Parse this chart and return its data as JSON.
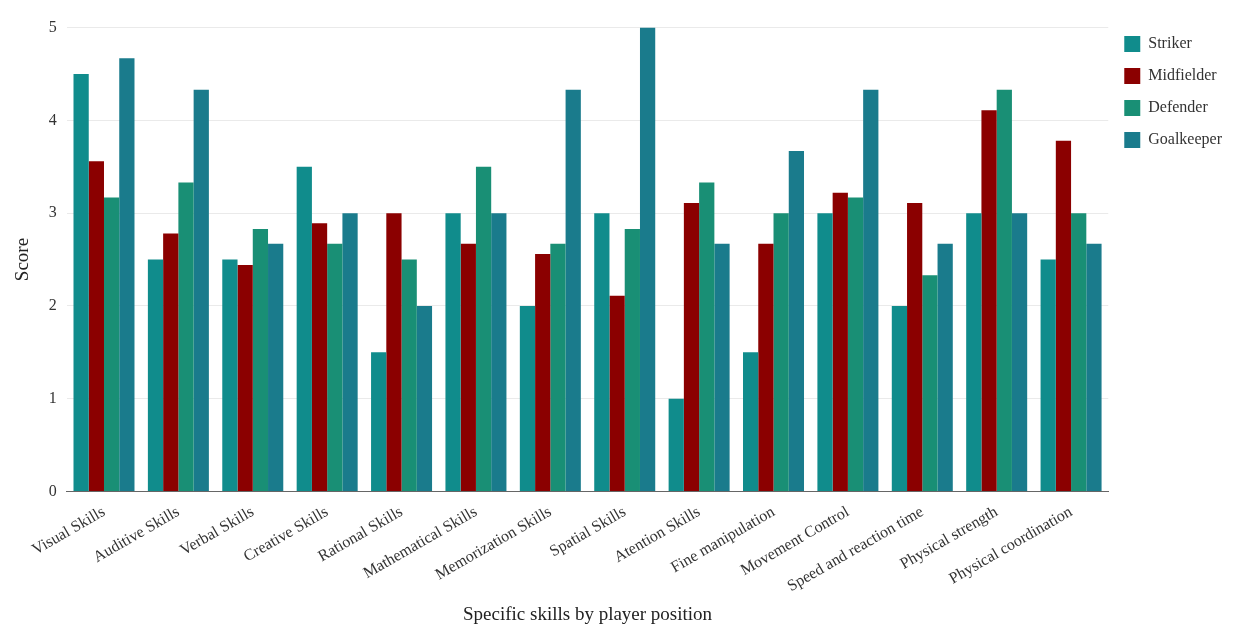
{
  "chart_data": {
    "type": "bar",
    "xlabel": "Specific skills by player position",
    "ylabel": "Score",
    "categories": [
      "Visual Skills",
      "Auditive Skills",
      "Verbal Skills",
      "Creative Skills",
      "Rational Skills",
      "Mathematical Skills",
      "Memorization Skills",
      "Spatial Skills",
      "Atention Skills",
      "Fine manipulation",
      "Movement Control",
      "Speed and reaction time",
      "Physical strength",
      "Physical coordination"
    ],
    "series": [
      {
        "name": "Striker",
        "color": "#108c8c",
        "values": [
          4.5,
          2.5,
          2.5,
          3.5,
          1.5,
          3,
          2,
          3,
          1,
          1.5,
          3,
          2,
          3,
          2.5
        ]
      },
      {
        "name": "Midfielder",
        "color": "#8b0000",
        "values": [
          3.56,
          2.78,
          2.44,
          2.89,
          3,
          2.67,
          2.56,
          2.11,
          3.11,
          2.67,
          3.22,
          3.11,
          4.11,
          3.78
        ]
      },
      {
        "name": "Defender",
        "color": "#198f75",
        "values": [
          3.17,
          3.33,
          2.83,
          2.67,
          2.5,
          3.5,
          2.67,
          2.83,
          3.33,
          3,
          3.17,
          2.33,
          4.33,
          3
        ]
      },
      {
        "name": "Goalkeeper",
        "color": "#1a7b8c",
        "values": [
          4.67,
          4.33,
          2.67,
          3,
          2,
          3,
          4.33,
          5,
          2.67,
          3.67,
          4.33,
          2.67,
          3,
          2.67
        ]
      }
    ],
    "ylim": [
      0,
      5
    ],
    "yticks": [
      0,
      1,
      2,
      3,
      4,
      5
    ],
    "grid": "y",
    "legend": "top right"
  }
}
